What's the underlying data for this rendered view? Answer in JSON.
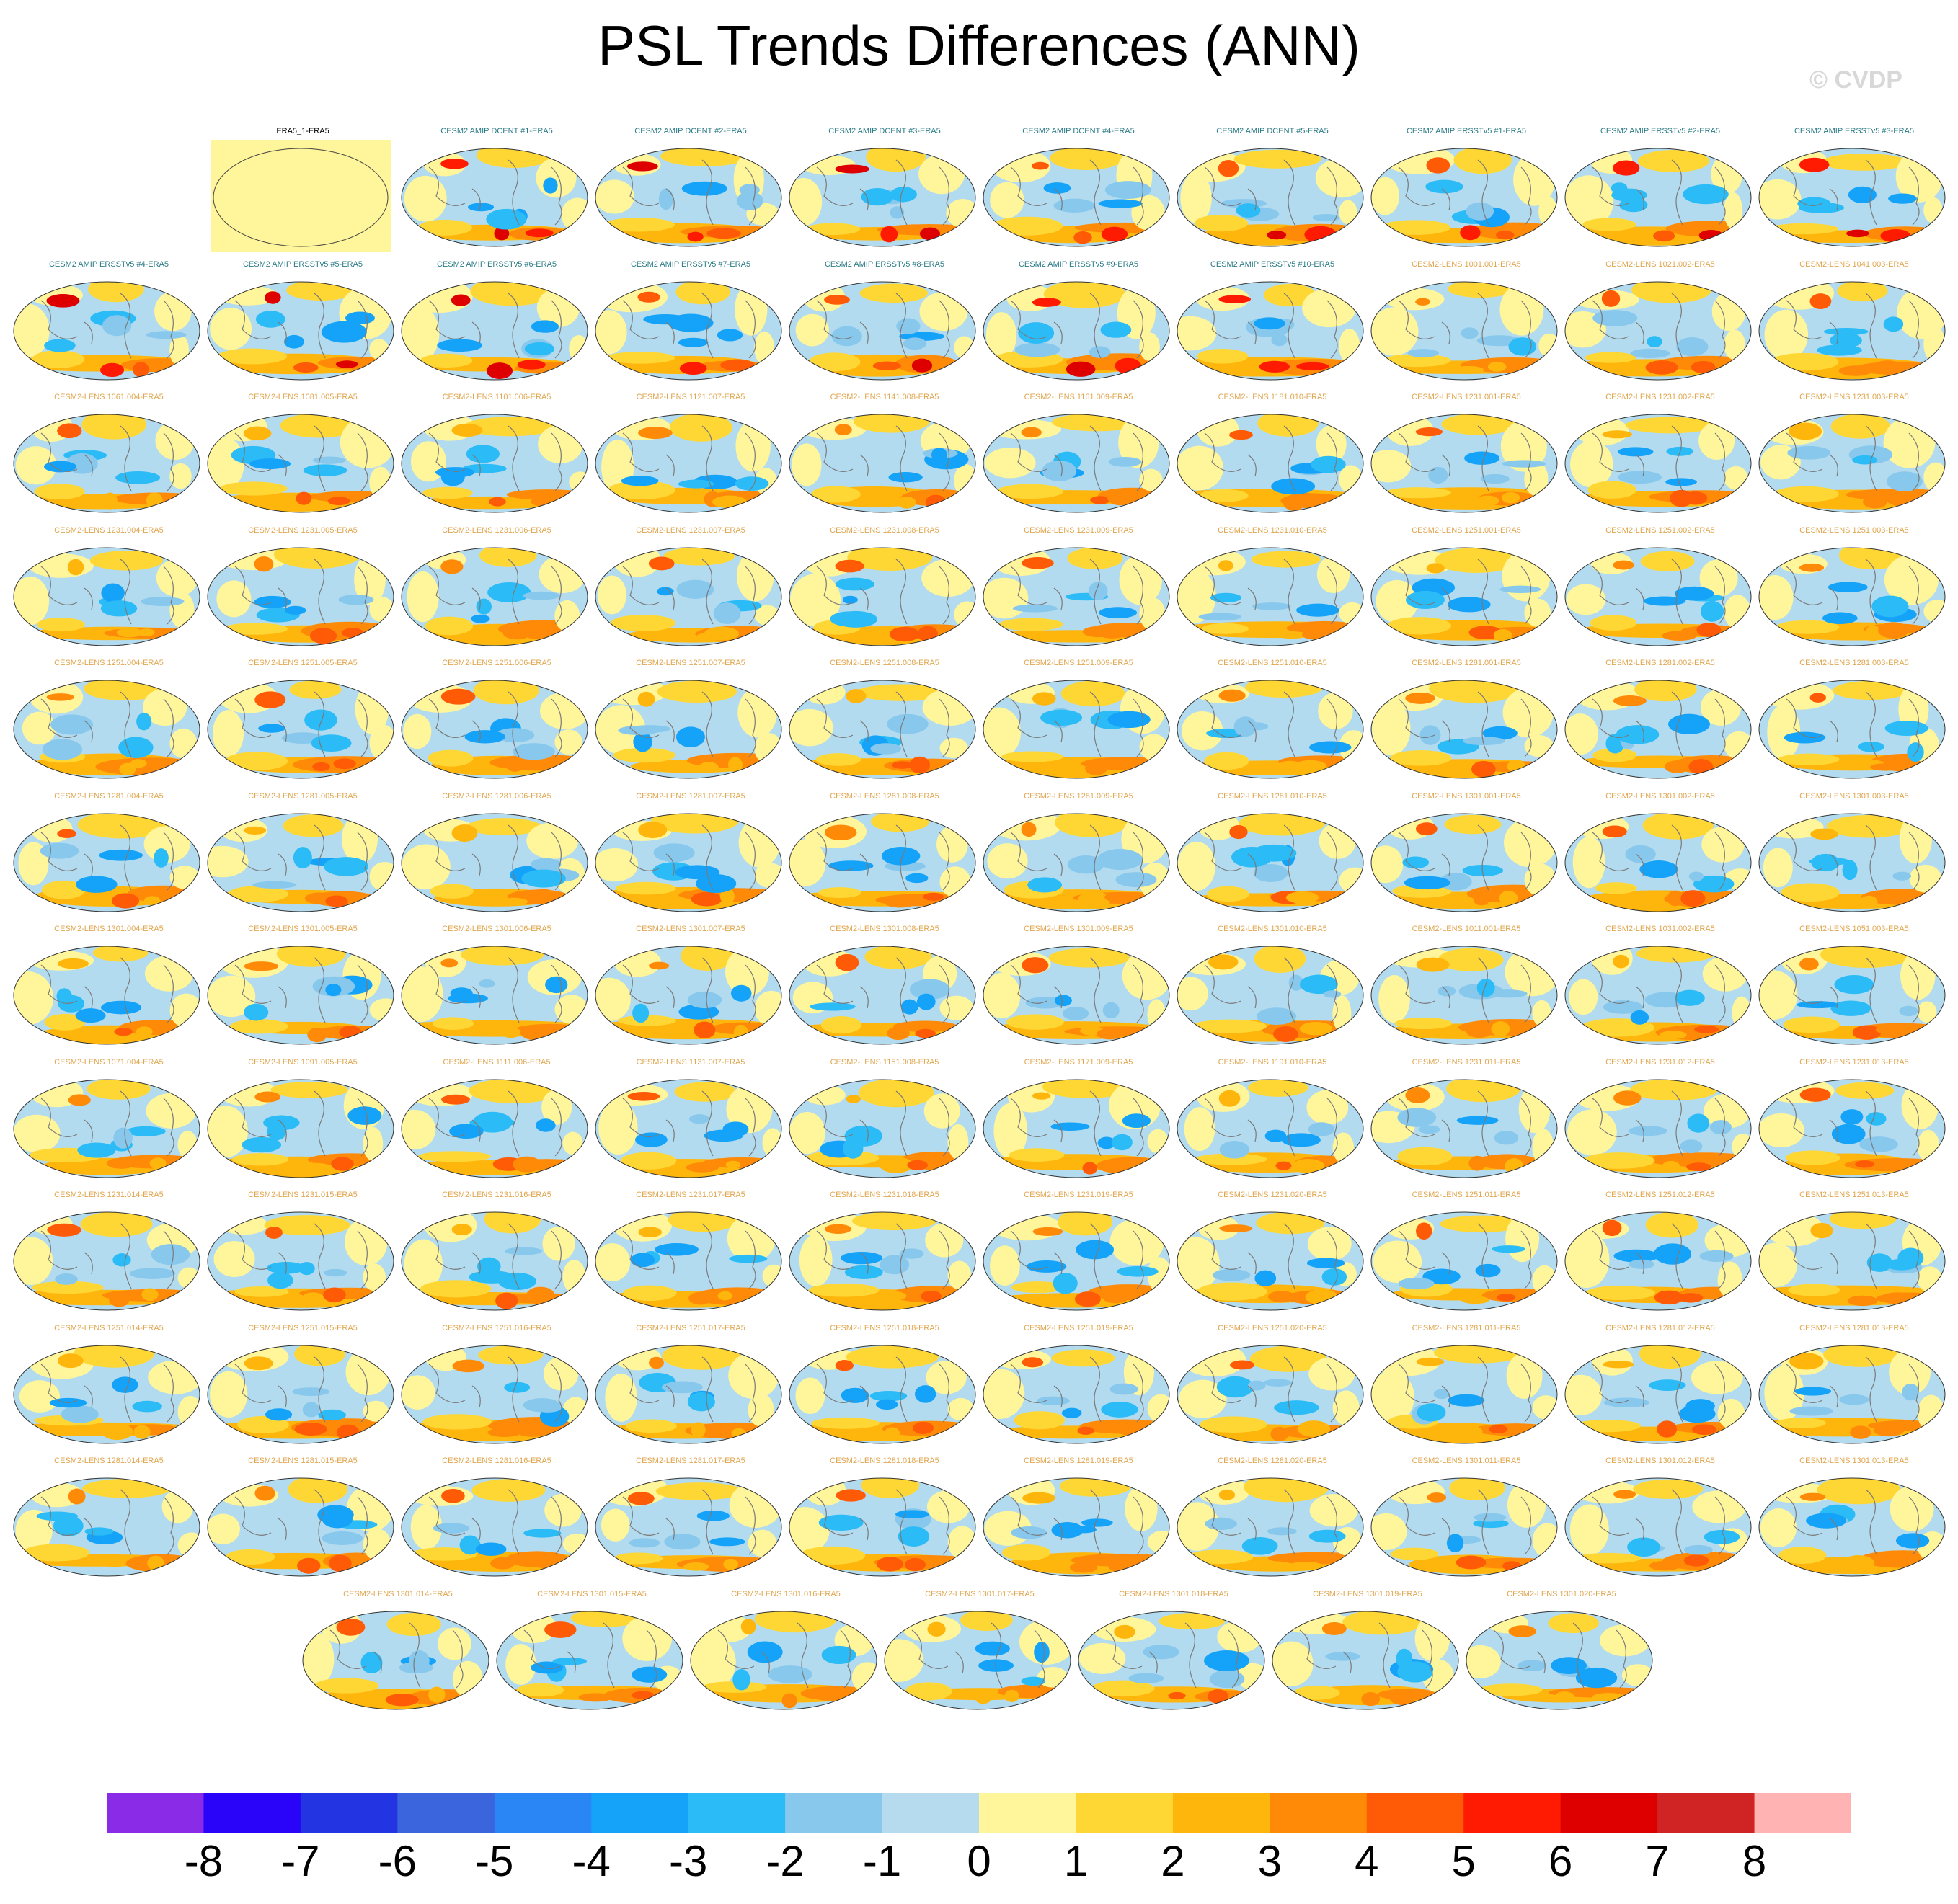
{
  "title": "PSL Trends Differences (ANN)",
  "watermark": "© CVDP",
  "label_colors": {
    "reference": "#000000",
    "amip": "#2a7b86",
    "lens": "#e0a64f"
  },
  "map_style": {
    "ocean_base": "#b3dbef",
    "warm_patch": "#fff59a",
    "coast": "#7a7a7a"
  },
  "panels": [
    {
      "label": "ERA5_1-ERA5",
      "kind": "reference"
    },
    {
      "label": "CESM2 AMIP DCENT #1-ERA5",
      "kind": "amip"
    },
    {
      "label": "CESM2 AMIP DCENT #2-ERA5",
      "kind": "amip"
    },
    {
      "label": "CESM2 AMIP DCENT #3-ERA5",
      "kind": "amip"
    },
    {
      "label": "CESM2 AMIP DCENT #4-ERA5",
      "kind": "amip"
    },
    {
      "label": "CESM2 AMIP DCENT #5-ERA5",
      "kind": "amip"
    },
    {
      "label": "CESM2 AMIP ERSSTv5 #1-ERA5",
      "kind": "amip"
    },
    {
      "label": "CESM2 AMIP ERSSTv5 #2-ERA5",
      "kind": "amip"
    },
    {
      "label": "CESM2 AMIP ERSSTv5 #3-ERA5",
      "kind": "amip"
    },
    {
      "label": "CESM2 AMIP ERSSTv5 #4-ERA5",
      "kind": "amip"
    },
    {
      "label": "CESM2 AMIP ERSSTv5 #5-ERA5",
      "kind": "amip"
    },
    {
      "label": "CESM2 AMIP ERSSTv5 #6-ERA5",
      "kind": "amip"
    },
    {
      "label": "CESM2 AMIP ERSSTv5 #7-ERA5",
      "kind": "amip"
    },
    {
      "label": "CESM2 AMIP ERSSTv5 #8-ERA5",
      "kind": "amip"
    },
    {
      "label": "CESM2 AMIP ERSSTv5 #9-ERA5",
      "kind": "amip"
    },
    {
      "label": "CESM2 AMIP ERSSTv5 #10-ERA5",
      "kind": "amip"
    },
    {
      "label": "CESM2-LENS 1001.001-ERA5",
      "kind": "lens"
    },
    {
      "label": "CESM2-LENS 1021.002-ERA5",
      "kind": "lens"
    },
    {
      "label": "CESM2-LENS 1041.003-ERA5",
      "kind": "lens"
    },
    {
      "label": "CESM2-LENS 1061.004-ERA5",
      "kind": "lens"
    },
    {
      "label": "CESM2-LENS 1081.005-ERA5",
      "kind": "lens"
    },
    {
      "label": "CESM2-LENS 1101.006-ERA5",
      "kind": "lens"
    },
    {
      "label": "CESM2-LENS 1121.007-ERA5",
      "kind": "lens"
    },
    {
      "label": "CESM2-LENS 1141.008-ERA5",
      "kind": "lens"
    },
    {
      "label": "CESM2-LENS 1161.009-ERA5",
      "kind": "lens"
    },
    {
      "label": "CESM2-LENS 1181.010-ERA5",
      "kind": "lens"
    },
    {
      "label": "CESM2-LENS 1231.001-ERA5",
      "kind": "lens"
    },
    {
      "label": "CESM2-LENS 1231.002-ERA5",
      "kind": "lens"
    },
    {
      "label": "CESM2-LENS 1231.003-ERA5",
      "kind": "lens"
    },
    {
      "label": "CESM2-LENS 1231.004-ERA5",
      "kind": "lens"
    },
    {
      "label": "CESM2-LENS 1231.005-ERA5",
      "kind": "lens"
    },
    {
      "label": "CESM2-LENS 1231.006-ERA5",
      "kind": "lens"
    },
    {
      "label": "CESM2-LENS 1231.007-ERA5",
      "kind": "lens"
    },
    {
      "label": "CESM2-LENS 1231.008-ERA5",
      "kind": "lens"
    },
    {
      "label": "CESM2-LENS 1231.009-ERA5",
      "kind": "lens"
    },
    {
      "label": "CESM2-LENS 1231.010-ERA5",
      "kind": "lens"
    },
    {
      "label": "CESM2-LENS 1251.001-ERA5",
      "kind": "lens"
    },
    {
      "label": "CESM2-LENS 1251.002-ERA5",
      "kind": "lens"
    },
    {
      "label": "CESM2-LENS 1251.003-ERA5",
      "kind": "lens"
    },
    {
      "label": "CESM2-LENS 1251.004-ERA5",
      "kind": "lens"
    },
    {
      "label": "CESM2-LENS 1251.005-ERA5",
      "kind": "lens"
    },
    {
      "label": "CESM2-LENS 1251.006-ERA5",
      "kind": "lens"
    },
    {
      "label": "CESM2-LENS 1251.007-ERA5",
      "kind": "lens"
    },
    {
      "label": "CESM2-LENS 1251.008-ERA5",
      "kind": "lens"
    },
    {
      "label": "CESM2-LENS 1251.009-ERA5",
      "kind": "lens"
    },
    {
      "label": "CESM2-LENS 1251.010-ERA5",
      "kind": "lens"
    },
    {
      "label": "CESM2-LENS 1281.001-ERA5",
      "kind": "lens"
    },
    {
      "label": "CESM2-LENS 1281.002-ERA5",
      "kind": "lens"
    },
    {
      "label": "CESM2-LENS 1281.003-ERA5",
      "kind": "lens"
    },
    {
      "label": "CESM2-LENS 1281.004-ERA5",
      "kind": "lens"
    },
    {
      "label": "CESM2-LENS 1281.005-ERA5",
      "kind": "lens"
    },
    {
      "label": "CESM2-LENS 1281.006-ERA5",
      "kind": "lens"
    },
    {
      "label": "CESM2-LENS 1281.007-ERA5",
      "kind": "lens"
    },
    {
      "label": "CESM2-LENS 1281.008-ERA5",
      "kind": "lens"
    },
    {
      "label": "CESM2-LENS 1281.009-ERA5",
      "kind": "lens"
    },
    {
      "label": "CESM2-LENS 1281.010-ERA5",
      "kind": "lens"
    },
    {
      "label": "CESM2-LENS 1301.001-ERA5",
      "kind": "lens"
    },
    {
      "label": "CESM2-LENS 1301.002-ERA5",
      "kind": "lens"
    },
    {
      "label": "CESM2-LENS 1301.003-ERA5",
      "kind": "lens"
    },
    {
      "label": "CESM2-LENS 1301.004-ERA5",
      "kind": "lens"
    },
    {
      "label": "CESM2-LENS 1301.005-ERA5",
      "kind": "lens"
    },
    {
      "label": "CESM2-LENS 1301.006-ERA5",
      "kind": "lens"
    },
    {
      "label": "CESM2-LENS 1301.007-ERA5",
      "kind": "lens"
    },
    {
      "label": "CESM2-LENS 1301.008-ERA5",
      "kind": "lens"
    },
    {
      "label": "CESM2-LENS 1301.009-ERA5",
      "kind": "lens"
    },
    {
      "label": "CESM2-LENS 1301.010-ERA5",
      "kind": "lens"
    },
    {
      "label": "CESM2-LENS 1011.001-ERA5",
      "kind": "lens"
    },
    {
      "label": "CESM2-LENS 1031.002-ERA5",
      "kind": "lens"
    },
    {
      "label": "CESM2-LENS 1051.003-ERA5",
      "kind": "lens"
    },
    {
      "label": "CESM2-LENS 1071.004-ERA5",
      "kind": "lens"
    },
    {
      "label": "CESM2-LENS 1091.005-ERA5",
      "kind": "lens"
    },
    {
      "label": "CESM2-LENS 1111.006-ERA5",
      "kind": "lens"
    },
    {
      "label": "CESM2-LENS 1131.007-ERA5",
      "kind": "lens"
    },
    {
      "label": "CESM2-LENS 1151.008-ERA5",
      "kind": "lens"
    },
    {
      "label": "CESM2-LENS 1171.009-ERA5",
      "kind": "lens"
    },
    {
      "label": "CESM2-LENS 1191.010-ERA5",
      "kind": "lens"
    },
    {
      "label": "CESM2-LENS 1231.011-ERA5",
      "kind": "lens"
    },
    {
      "label": "CESM2-LENS 1231.012-ERA5",
      "kind": "lens"
    },
    {
      "label": "CESM2-LENS 1231.013-ERA5",
      "kind": "lens"
    },
    {
      "label": "CESM2-LENS 1231.014-ERA5",
      "kind": "lens"
    },
    {
      "label": "CESM2-LENS 1231.015-ERA5",
      "kind": "lens"
    },
    {
      "label": "CESM2-LENS 1231.016-ERA5",
      "kind": "lens"
    },
    {
      "label": "CESM2-LENS 1231.017-ERA5",
      "kind": "lens"
    },
    {
      "label": "CESM2-LENS 1231.018-ERA5",
      "kind": "lens"
    },
    {
      "label": "CESM2-LENS 1231.019-ERA5",
      "kind": "lens"
    },
    {
      "label": "CESM2-LENS 1231.020-ERA5",
      "kind": "lens"
    },
    {
      "label": "CESM2-LENS 1251.011-ERA5",
      "kind": "lens"
    },
    {
      "label": "CESM2-LENS 1251.012-ERA5",
      "kind": "lens"
    },
    {
      "label": "CESM2-LENS 1251.013-ERA5",
      "kind": "lens"
    },
    {
      "label": "CESM2-LENS 1251.014-ERA5",
      "kind": "lens"
    },
    {
      "label": "CESM2-LENS 1251.015-ERA5",
      "kind": "lens"
    },
    {
      "label": "CESM2-LENS 1251.016-ERA5",
      "kind": "lens"
    },
    {
      "label": "CESM2-LENS 1251.017-ERA5",
      "kind": "lens"
    },
    {
      "label": "CESM2-LENS 1251.018-ERA5",
      "kind": "lens"
    },
    {
      "label": "CESM2-LENS 1251.019-ERA5",
      "kind": "lens"
    },
    {
      "label": "CESM2-LENS 1251.020-ERA5",
      "kind": "lens"
    },
    {
      "label": "CESM2-LENS 1281.011-ERA5",
      "kind": "lens"
    },
    {
      "label": "CESM2-LENS 1281.012-ERA5",
      "kind": "lens"
    },
    {
      "label": "CESM2-LENS 1281.013-ERA5",
      "kind": "lens"
    },
    {
      "label": "CESM2-LENS 1281.014-ERA5",
      "kind": "lens"
    },
    {
      "label": "CESM2-LENS 1281.015-ERA5",
      "kind": "lens"
    },
    {
      "label": "CESM2-LENS 1281.016-ERA5",
      "kind": "lens"
    },
    {
      "label": "CESM2-LENS 1281.017-ERA5",
      "kind": "lens"
    },
    {
      "label": "CESM2-LENS 1281.018-ERA5",
      "kind": "lens"
    },
    {
      "label": "CESM2-LENS 1281.019-ERA5",
      "kind": "lens"
    },
    {
      "label": "CESM2-LENS 1281.020-ERA5",
      "kind": "lens"
    },
    {
      "label": "CESM2-LENS 1301.011-ERA5",
      "kind": "lens"
    },
    {
      "label": "CESM2-LENS 1301.012-ERA5",
      "kind": "lens"
    },
    {
      "label": "CESM2-LENS 1301.013-ERA5",
      "kind": "lens"
    },
    {
      "label": "CESM2-LENS 1301.014-ERA5",
      "kind": "lens"
    },
    {
      "label": "CESM2-LENS 1301.015-ERA5",
      "kind": "lens"
    },
    {
      "label": "CESM2-LENS 1301.016-ERA5",
      "kind": "lens"
    },
    {
      "label": "CESM2-LENS 1301.017-ERA5",
      "kind": "lens"
    },
    {
      "label": "CESM2-LENS 1301.018-ERA5",
      "kind": "lens"
    },
    {
      "label": "CESM2-LENS 1301.019-ERA5",
      "kind": "lens"
    },
    {
      "label": "CESM2-LENS 1301.020-ERA5",
      "kind": "lens"
    }
  ],
  "colorbar": {
    "ticks": [
      "-8",
      "-7",
      "-6",
      "-5",
      "-4",
      "-3",
      "-2",
      "-1",
      "0",
      "1",
      "2",
      "3",
      "4",
      "5",
      "6",
      "7",
      "8"
    ],
    "colors": [
      "#8a2be8",
      "#2a04f8",
      "#2334e2",
      "#3a65dd",
      "#2a86f4",
      "#14a3f8",
      "#2bbbf6",
      "#88c8ed",
      "#b6dbef",
      "#fff59a",
      "#ffd734",
      "#ffb60c",
      "#ff8a08",
      "#ff5a06",
      "#ff1a02",
      "#de0000",
      "#d02424",
      "#ffb3b3"
    ]
  }
}
